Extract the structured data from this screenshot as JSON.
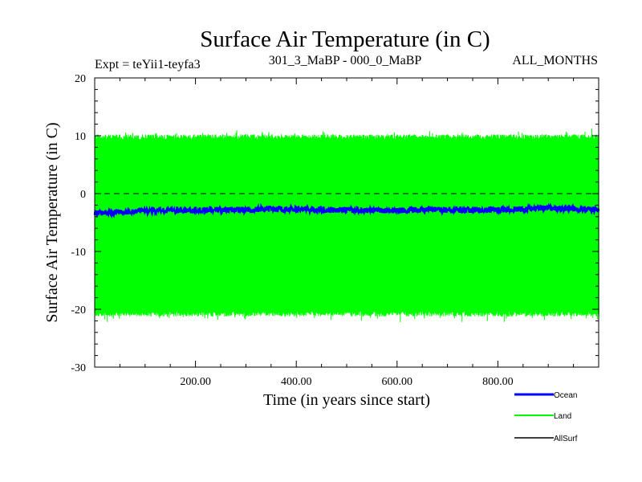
{
  "chart_data": {
    "type": "line",
    "title": "Surface Air Temperature (in C)",
    "subtitle_left": "Expt = teYii1-teyfa3",
    "subtitle_center": "301_3_MaBP - 000_0_MaBP",
    "subtitle_right": "ALL_MONTHS",
    "xlabel": "Time (in years since start)",
    "ylabel": "Surface Air Temperature (in C)",
    "xlim": [
      0,
      1000
    ],
    "ylim": [
      -30,
      20
    ],
    "x_ticks": [
      200,
      400,
      600,
      800
    ],
    "x_tick_labels": [
      "200.00",
      "400.00",
      "600.00",
      "800.00"
    ],
    "y_ticks": [
      20,
      10,
      0,
      -10,
      -20,
      -30
    ],
    "y_tick_labels": [
      "20",
      "10",
      "0",
      "-10",
      "-20",
      "-30"
    ],
    "reference_line": {
      "y": 0,
      "style": "dashed"
    },
    "series": [
      {
        "name": "Land",
        "color": "#00ff00",
        "description": "monthly values oscillating between seasonal extremes",
        "upper_envelope": [
          [
            0,
            9.8
          ],
          [
            250,
            9.8
          ],
          [
            500,
            9.8
          ],
          [
            750,
            9.8
          ],
          [
            1000,
            9.8
          ]
        ],
        "lower_envelope": [
          [
            0,
            -20.8
          ],
          [
            250,
            -20.8
          ],
          [
            500,
            -20.8
          ],
          [
            750,
            -20.8
          ],
          [
            1000,
            -20.8
          ]
        ]
      },
      {
        "name": "Ocean",
        "color": "#0000ff",
        "values": [
          [
            0,
            -3.4
          ],
          [
            50,
            -3.2
          ],
          [
            100,
            -3.0
          ],
          [
            150,
            -2.9
          ],
          [
            200,
            -2.9
          ],
          [
            250,
            -2.8
          ],
          [
            300,
            -2.8
          ],
          [
            350,
            -2.7
          ],
          [
            400,
            -2.7
          ],
          [
            450,
            -2.8
          ],
          [
            500,
            -2.8
          ],
          [
            550,
            -2.9
          ],
          [
            600,
            -2.9
          ],
          [
            650,
            -2.8
          ],
          [
            700,
            -2.8
          ],
          [
            750,
            -2.8
          ],
          [
            800,
            -2.8
          ],
          [
            850,
            -2.7
          ],
          [
            900,
            -2.5
          ],
          [
            950,
            -2.6
          ],
          [
            1000,
            -2.8
          ]
        ]
      },
      {
        "name": "AllSurf",
        "color": "#000000",
        "values": []
      }
    ],
    "legend": {
      "position": "below-right",
      "entries": [
        {
          "name": "Ocean",
          "color": "#0000ff"
        },
        {
          "name": "Land",
          "color": "#00ff00"
        },
        {
          "name": "AllSurf",
          "color": "#000000"
        }
      ]
    }
  }
}
